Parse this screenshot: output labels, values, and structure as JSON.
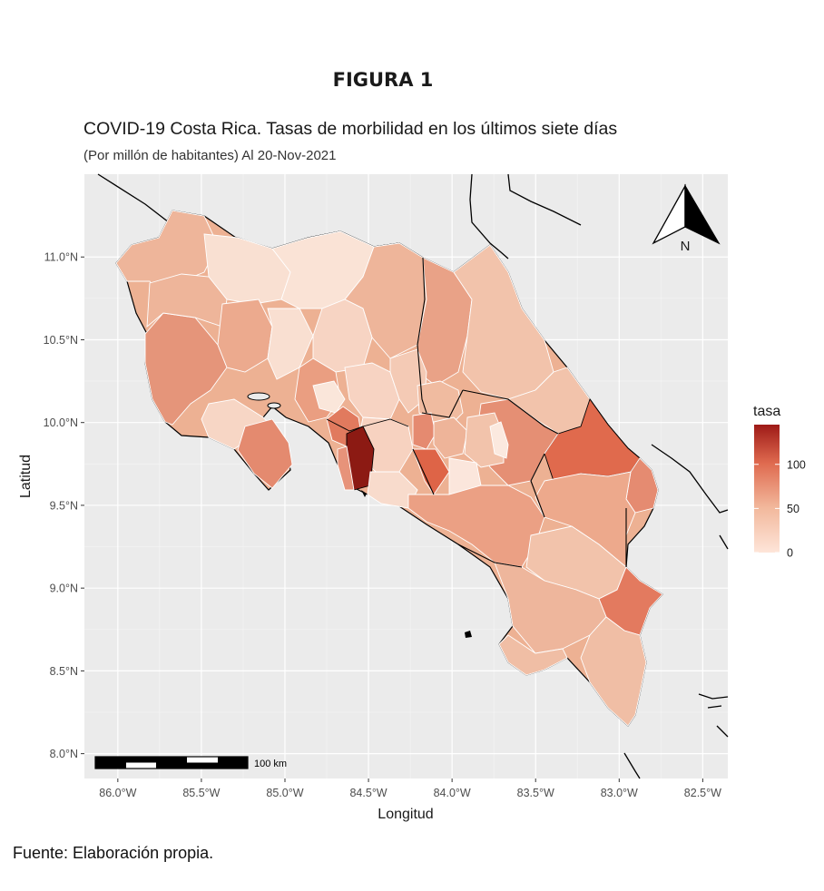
{
  "figure_label": "FIGURA 1",
  "source_note": "Fuente: Elaboración propia.",
  "chart_data": {
    "type": "choropleth map",
    "title": "COVID-19 Costa Rica. Tasas de morbilidad en los últimos siete días",
    "subtitle": "(Por millón de habitantes) Al 20-Nov-2021",
    "xlabel": "Longitud",
    "ylabel": "Latitud",
    "x_ticks": [
      "86.0°W",
      "85.5°W",
      "85.0°W",
      "84.5°W",
      "84.0°W",
      "83.5°W",
      "83.0°W",
      "82.5°W"
    ],
    "x_tick_values": [
      -86.0,
      -85.5,
      -85.0,
      -84.5,
      -84.0,
      -83.5,
      -83.0,
      -82.5
    ],
    "y_ticks": [
      "11.0°N",
      "10.5°N",
      "10.0°N",
      "9.5°N",
      "9.0°N",
      "8.5°N",
      "8.0°N"
    ],
    "y_tick_values": [
      11.0,
      10.5,
      10.0,
      9.5,
      9.0,
      8.5,
      8.0
    ],
    "xlim": [
      -86.2,
      -82.35
    ],
    "ylim": [
      7.85,
      11.5
    ],
    "grid": true,
    "legend": {
      "title": "tasa",
      "position": "right",
      "ticks": [
        "0",
        "50",
        "100"
      ],
      "tick_values": [
        0,
        50,
        100
      ],
      "range": [
        0,
        145
      ],
      "color_low": "#fee5d9",
      "color_high": "#9e1a17"
    },
    "north_arrow_label": "N",
    "scale_bar_label": "100 km"
  },
  "colors": {
    "panel_background": "#ebebeb",
    "grid": "#ffffff",
    "land_border": "#ffffff",
    "coastline": "#000000"
  }
}
